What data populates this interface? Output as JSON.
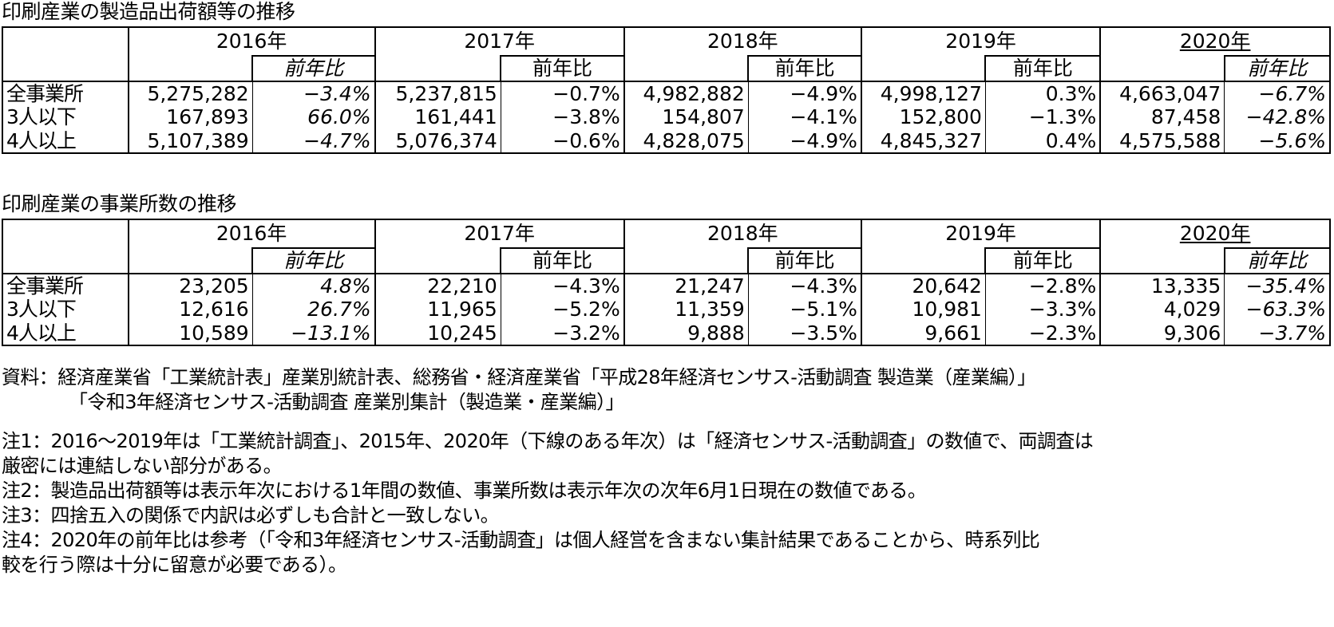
{
  "table1": {
    "title": "印刷産業の製造品出荷額等の推移",
    "years": [
      "2016年",
      "2017年",
      "2018年",
      "2019年",
      "2020年"
    ],
    "yoy_label": "前年比",
    "rows": [
      {
        "label": "全事業所",
        "cells": [
          [
            "5,275,282",
            "−3.4%"
          ],
          [
            "5,237,815",
            "−0.7%"
          ],
          [
            "4,982,882",
            "−4.9%"
          ],
          [
            "4,998,127",
            "0.3%"
          ],
          [
            "4,663,047",
            "−6.7%"
          ]
        ]
      },
      {
        "label": "3人以下",
        "cells": [
          [
            "167,893",
            "66.0%"
          ],
          [
            "161,441",
            "−3.8%"
          ],
          [
            "154,807",
            "−4.1%"
          ],
          [
            "152,800",
            "−1.3%"
          ],
          [
            "87,458",
            "−42.8%"
          ]
        ]
      },
      {
        "label": "4人以上",
        "cells": [
          [
            "5,107,389",
            "−4.7%"
          ],
          [
            "5,076,374",
            "−0.6%"
          ],
          [
            "4,828,075",
            "−4.9%"
          ],
          [
            "4,845,327",
            "0.4%"
          ],
          [
            "4,575,588",
            "−5.6%"
          ]
        ]
      }
    ]
  },
  "table2": {
    "title": "印刷産業の事業所数の推移",
    "years": [
      "2016年",
      "2017年",
      "2018年",
      "2019年",
      "2020年"
    ],
    "yoy_label": "前年比",
    "rows": [
      {
        "label": "全事業所",
        "cells": [
          [
            "23,205",
            "4.8%"
          ],
          [
            "22,210",
            "−4.3%"
          ],
          [
            "21,247",
            "−4.3%"
          ],
          [
            "20,642",
            "−2.8%"
          ],
          [
            "13,335",
            "−35.4%"
          ]
        ]
      },
      {
        "label": "3人以下",
        "cells": [
          [
            "12,616",
            "26.7%"
          ],
          [
            "11,965",
            "−5.2%"
          ],
          [
            "11,359",
            "−5.1%"
          ],
          [
            "10,981",
            "−3.3%"
          ],
          [
            "4,029",
            "−63.3%"
          ]
        ]
      },
      {
        "label": "4人以上",
        "cells": [
          [
            "10,589",
            "−13.1%"
          ],
          [
            "10,245",
            "−3.2%"
          ],
          [
            "9,888",
            "−3.5%"
          ],
          [
            "9,661",
            "−2.3%"
          ],
          [
            "9,306",
            "−3.7%"
          ]
        ]
      }
    ]
  },
  "source": {
    "line1": "資料：経済産業省「工業統計表」産業別統計表、総務省・経済産業省「平成28年経済センサス‐活動調査 製造業（産業編）」",
    "line2": "「令和3年経済センサス‐活動調査 産業別集計（製造業・産業編）」"
  },
  "notes": {
    "note1_line1": "注1：2016～2019年は「工業統計調査」、2015年、2020年（下線のある年次）は「経済センサス‐活動調査」の数値で、両調査は",
    "note1_line2": "厳密には連結しない部分がある。",
    "note2": "注2：製造品出荷額等は表示年次における1年間の数値、事業所数は表示年次の次年6月1日現在の数値である。",
    "note3": "注3：四捨五入の関係で内訳は必ずしも合計と一致しない。",
    "note4_line1": "注4：2020年の前年比は参考（「令和3年経済センサス‐活動調査」は個人経営を含まない集計結果であることから、時系列比",
    "note4_line2": "較を行う際は十分に留意が必要である）。"
  }
}
